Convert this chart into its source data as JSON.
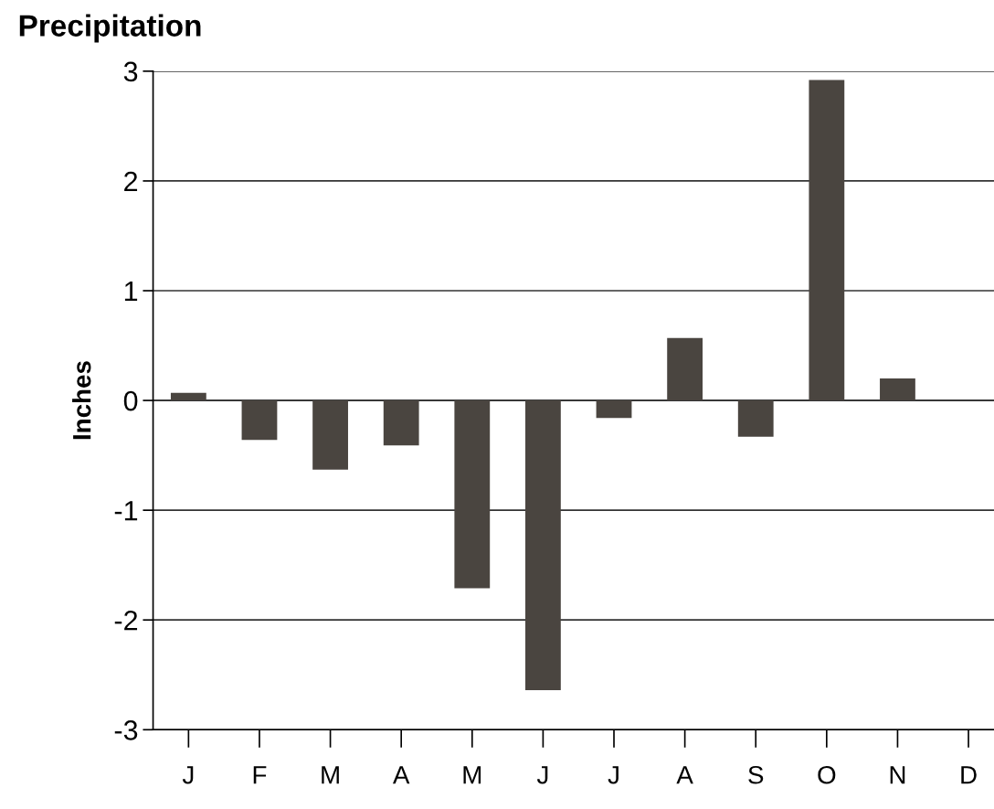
{
  "chart_data": {
    "type": "bar",
    "title": "Precipitation",
    "ylabel": "Inches",
    "categories": [
      "J",
      "F",
      "M",
      "A",
      "M",
      "J",
      "J",
      "A",
      "S",
      "O",
      "N",
      "D"
    ],
    "values": [
      0.07,
      -0.36,
      -0.63,
      -0.41,
      -1.71,
      -2.64,
      -0.16,
      0.57,
      -0.33,
      2.92,
      0.2,
      null
    ],
    "color": "#4a4540",
    "ylim": [
      -3,
      3
    ],
    "yticks": [
      -3,
      -2,
      -1,
      0,
      1,
      2,
      3
    ],
    "grid": "y"
  }
}
